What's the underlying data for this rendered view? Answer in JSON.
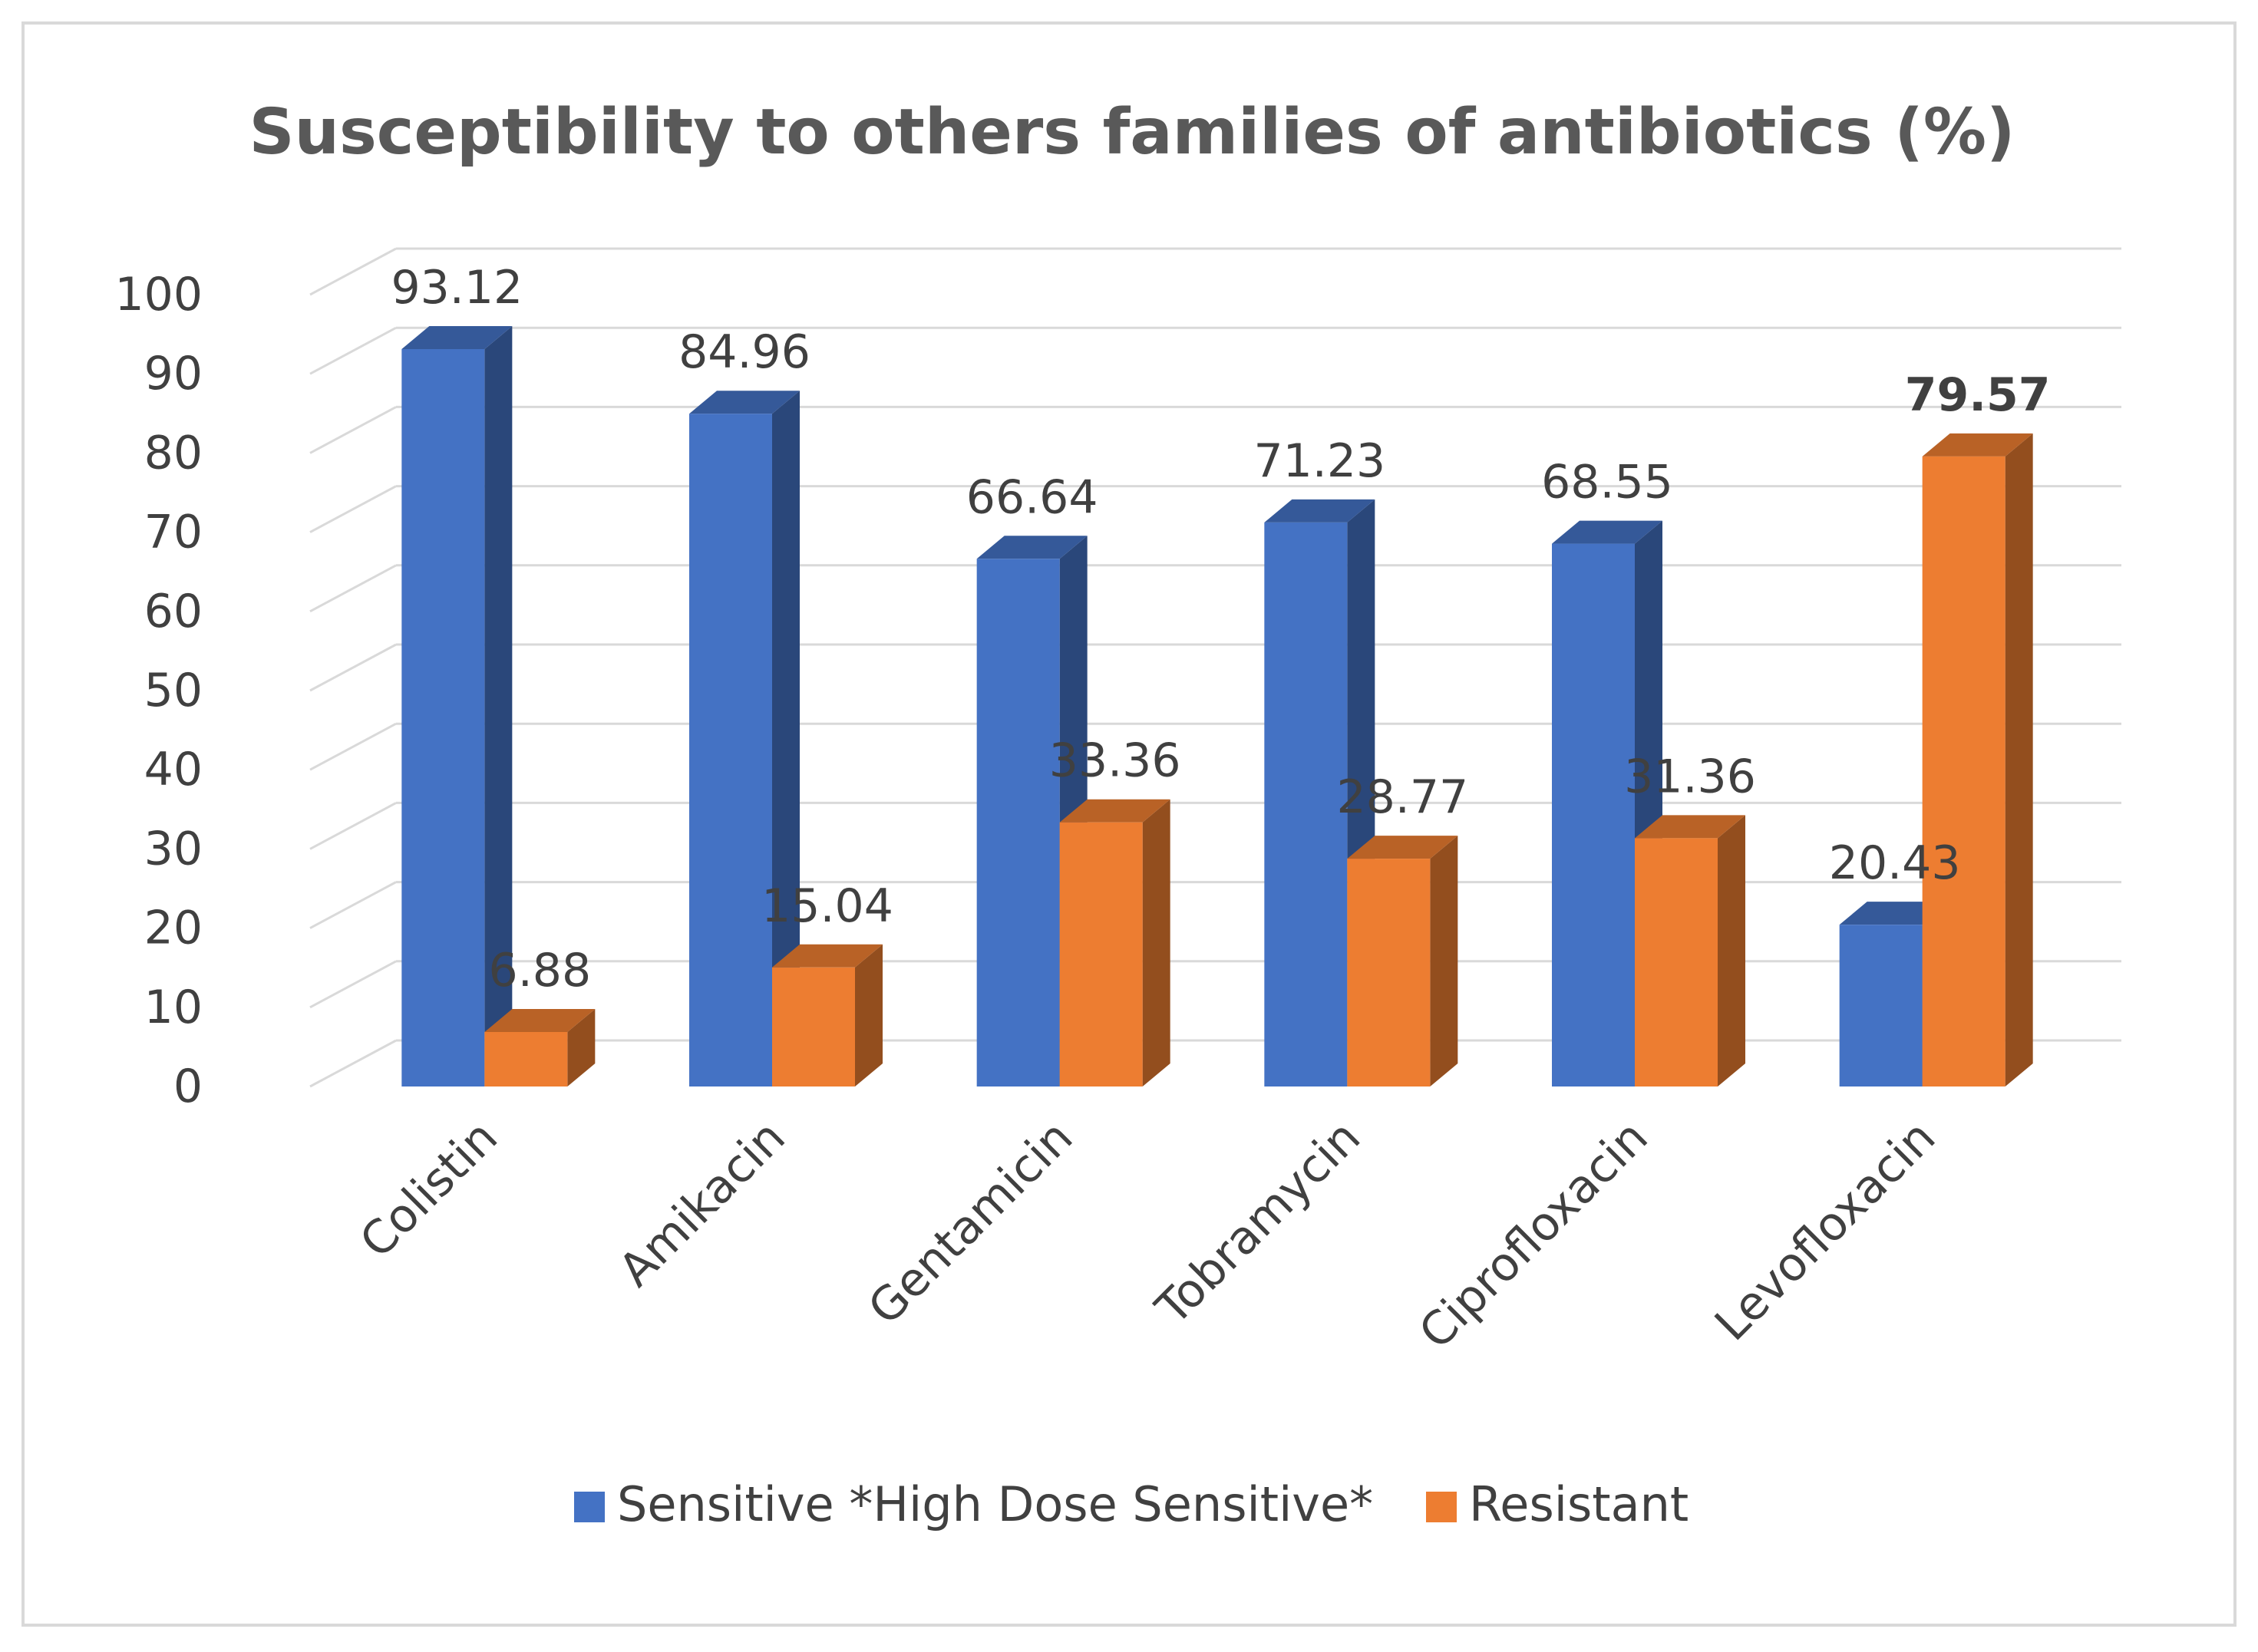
{
  "chart_data": {
    "type": "bar",
    "title": "Susceptibility to others families of antibiotics (%)",
    "xlabel": "",
    "ylabel": "",
    "ylim": [
      0,
      100
    ],
    "yticks": [
      0,
      10,
      20,
      30,
      40,
      50,
      60,
      70,
      80,
      90,
      100
    ],
    "grid": true,
    "legend_position": "bottom",
    "style": "3d-clustered-column",
    "categories": [
      "Colistin",
      "Amikacin",
      "Gentamicin",
      "Tobramycin",
      "Ciprofloxacin",
      "Levofloxacin"
    ],
    "series": [
      {
        "name": "Sensitive *High Dose Sensitive*",
        "color": "#4472c4",
        "values": [
          93.12,
          84.96,
          66.64,
          71.23,
          68.55,
          20.43
        ],
        "labels": [
          "93.12",
          "84.96",
          "66.64",
          "71.23",
          "68.55",
          "20.43"
        ]
      },
      {
        "name": "Resistant",
        "color": "#ed7d31",
        "values": [
          6.88,
          15.04,
          33.36,
          28.77,
          31.36,
          79.57
        ],
        "labels": [
          "6.88",
          "15.04",
          "33.36",
          "28.77",
          "31.36",
          "79.57"
        ],
        "bold_labels": [
          "79.57"
        ]
      }
    ]
  }
}
